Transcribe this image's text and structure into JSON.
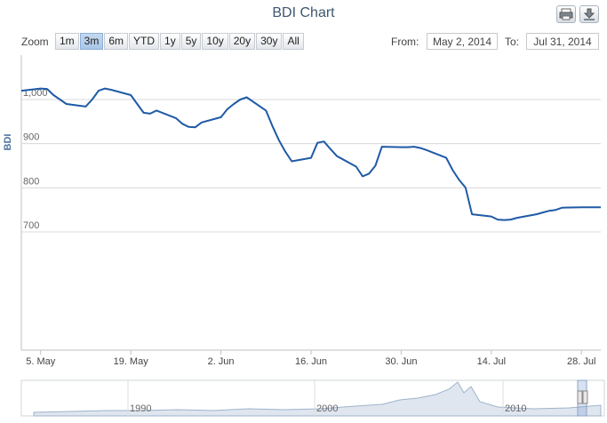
{
  "header": {
    "title": "BDI Chart"
  },
  "export_buttons": [
    {
      "icon": "print-icon"
    },
    {
      "icon": "download-icon"
    }
  ],
  "zoom": {
    "label": "Zoom",
    "buttons": [
      "1m",
      "3m",
      "6m",
      "YTD",
      "1y",
      "5y",
      "10y",
      "20y",
      "30y",
      "All"
    ],
    "active": "3m"
  },
  "range": {
    "from_label": "From:",
    "from_value": "May 2, 2014",
    "to_label": "To:",
    "to_value": "Jul 31, 2014"
  },
  "colors": {
    "series": "#1f5aa6",
    "navigator_fill": "#dfe6ef",
    "grid": "#d8d8d8"
  },
  "chart_data": {
    "type": "line",
    "title": "BDI Chart",
    "ylabel": "BDI",
    "xlabel": "",
    "x_ticks": [
      "5. May",
      "19. May",
      "2. Jun",
      "16. Jun",
      "30. Jun",
      "14. Jul",
      "28. Jul"
    ],
    "y_ticks": [
      "700",
      "800",
      "900",
      "1,000"
    ],
    "grid": true,
    "series": [
      {
        "x": [
          "2014-05-02",
          "2014-05-05",
          "2014-05-06",
          "2014-05-07",
          "2014-05-08",
          "2014-05-09",
          "2014-05-12",
          "2014-05-13",
          "2014-05-14",
          "2014-05-15",
          "2014-05-16",
          "2014-05-19",
          "2014-05-20",
          "2014-05-21",
          "2014-05-22",
          "2014-05-23",
          "2014-05-26",
          "2014-05-27",
          "2014-05-28",
          "2014-05-29",
          "2014-05-30",
          "2014-06-02",
          "2014-06-03",
          "2014-06-04",
          "2014-06-05",
          "2014-06-06",
          "2014-06-09",
          "2014-06-10",
          "2014-06-11",
          "2014-06-12",
          "2014-06-13",
          "2014-06-16",
          "2014-06-17",
          "2014-06-18",
          "2014-06-19",
          "2014-06-20",
          "2014-06-23",
          "2014-06-24",
          "2014-06-25",
          "2014-06-26",
          "2014-06-27",
          "2014-06-30",
          "2014-07-01",
          "2014-07-02",
          "2014-07-03",
          "2014-07-04",
          "2014-07-07",
          "2014-07-08",
          "2014-07-09",
          "2014-07-10",
          "2014-07-11",
          "2014-07-14",
          "2014-07-15",
          "2014-07-16",
          "2014-07-17",
          "2014-07-18",
          "2014-07-21",
          "2014-07-22",
          "2014-07-23",
          "2014-07-24",
          "2014-07-25",
          "2014-07-28",
          "2014-07-29",
          "2014-07-30",
          "2014-07-31"
        ],
        "y": [
          1020,
          1025,
          1024,
          1010,
          1000,
          990,
          984,
          1000,
          1020,
          1025,
          1022,
          1010,
          990,
          970,
          968,
          975,
          958,
          945,
          938,
          937,
          948,
          960,
          978,
          990,
          1000,
          1005,
          975,
          940,
          908,
          882,
          860,
          868,
          902,
          905,
          888,
          872,
          848,
          826,
          832,
          850,
          893,
          892,
          892,
          893,
          890,
          885,
          868,
          840,
          818,
          800,
          740,
          735,
          728,
          727,
          728,
          732,
          740,
          744,
          748,
          750,
          755,
          756,
          756,
          756,
          756
        ]
      }
    ],
    "navigator": {
      "x_ticks": [
        "1990",
        "2000",
        "2010"
      ]
    }
  }
}
